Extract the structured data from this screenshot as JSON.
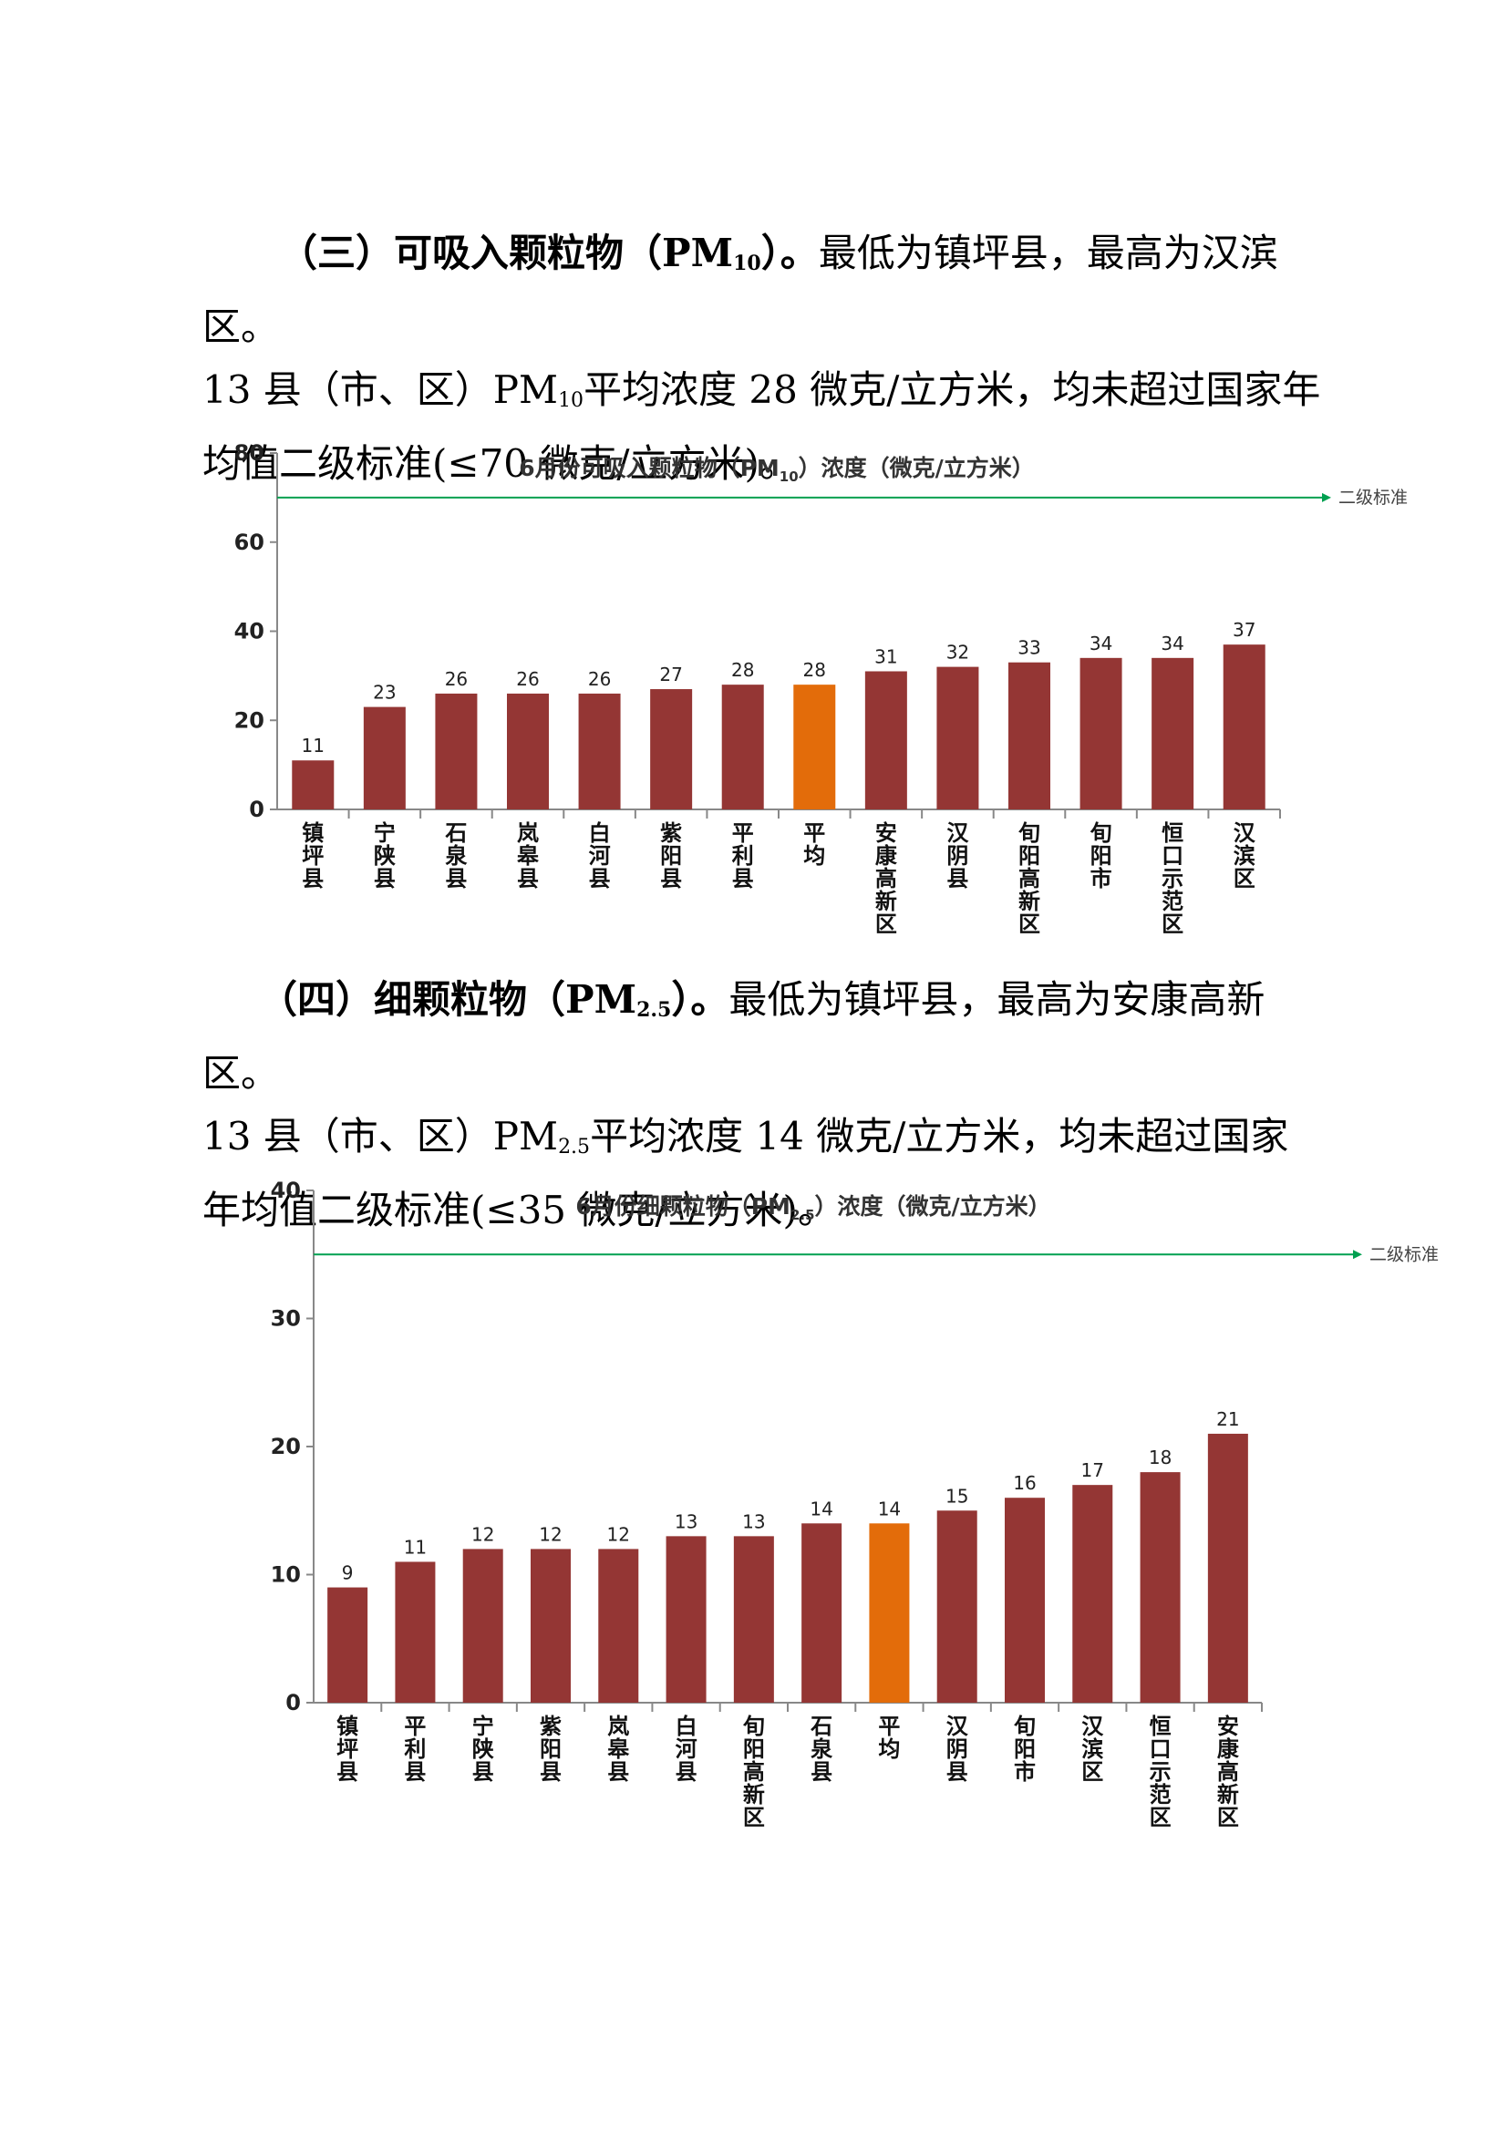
{
  "section3": {
    "heading_before": "（三）可吸入颗粒物（PM",
    "heading_sub": "10",
    "heading_after": "）。",
    "text1": "最低为镇坪县，最高为汉滨区。",
    "line2_before": "13 县（市、区）PM",
    "line2_sub": "10",
    "line2_after": "平均浓度 28 微克/立方米，均未超过国家年",
    "line3": "均值二级标准(≤70 微克/立方米)。"
  },
  "section4": {
    "heading_before": "（四）细颗粒物（PM",
    "heading_sub": "2.5",
    "heading_after": "）。",
    "text1": "最低为镇坪县，最高为安康高新区。",
    "line2_before": "13 县（市、区）PM",
    "line2_sub": "2.5",
    "line2_after": "平均浓度 14 微克/立方米，均未超过国家",
    "line3": "年均值二级标准(≤35 微克/立方米)。"
  },
  "colors": {
    "bar": "#943634",
    "highlight": "#E36C0A",
    "standard_line": "#00A050"
  },
  "chart_data": [
    {
      "type": "bar",
      "title_before": "6月份可吸入颗粒物（PM",
      "title_sub": "10",
      "title_after": "）浓度（微克/立方米）",
      "categories": [
        "镇坪县",
        "宁陕县",
        "石泉县",
        "岚皋县",
        "白河县",
        "紫阳县",
        "平利县",
        "平均",
        "安康高新区",
        "汉阴县",
        "旬阳高新区",
        "旬阳市",
        "恒口示范区",
        "汉滨区"
      ],
      "values": [
        11,
        23,
        26,
        26,
        26,
        27,
        28,
        28,
        31,
        32,
        33,
        34,
        34,
        37
      ],
      "highlight_index": 7,
      "ylim": [
        0,
        80
      ],
      "yticks": [
        0,
        20,
        40,
        60,
        80
      ],
      "reference_line": {
        "value": 70,
        "label": "二级标准"
      }
    },
    {
      "type": "bar",
      "title_before": "6月份细颗粒物（PM",
      "title_sub": "2.5",
      "title_after": "）浓度（微克/立方米）",
      "categories": [
        "镇坪县",
        "平利县",
        "宁陕县",
        "紫阳县",
        "岚皋县",
        "白河县",
        "旬阳高新区",
        "石泉县",
        "平均",
        "汉阴县",
        "旬阳市",
        "汉滨区",
        "恒口示范区",
        "安康高新区"
      ],
      "values": [
        9,
        11,
        12,
        12,
        12,
        13,
        13,
        14,
        14,
        15,
        16,
        17,
        18,
        21
      ],
      "highlight_index": 8,
      "ylim": [
        0,
        40
      ],
      "yticks": [
        0,
        10,
        20,
        30,
        40
      ],
      "reference_line": {
        "value": 35,
        "label": "二级标准"
      }
    }
  ]
}
